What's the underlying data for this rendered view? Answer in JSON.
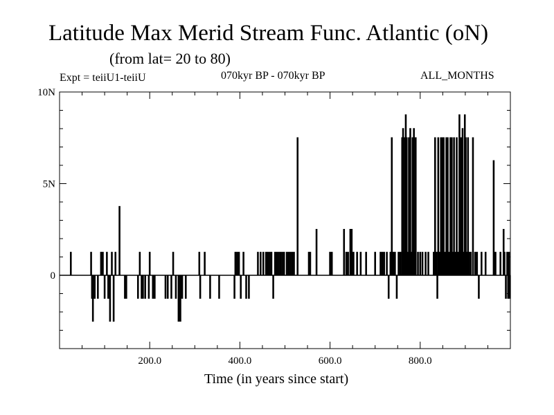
{
  "chart_data": {
    "type": "line",
    "title": "Latitude Max Merid Stream Func. Atlantic (oN)",
    "subtitle": "(from lat= 20 to 80)",
    "expt_label": "Expt = teiiU1-teiiU",
    "period_label": "070kyr BP - 070kyr BP",
    "months_label": "ALL_MONTHS",
    "xlabel": "Time (in years since start)",
    "ylabel": "",
    "xlim": [
      0,
      1000
    ],
    "ylim": [
      -4,
      10
    ],
    "x_ticks": [
      200,
      400,
      600,
      800
    ],
    "x_tick_labels": [
      "200.0",
      "400.0",
      "600.0",
      "800.0"
    ],
    "y_ticks": [
      0,
      5,
      10
    ],
    "y_tick_labels": [
      "0",
      "5N",
      "10N"
    ],
    "series": [
      {
        "color": "#000000",
        "spikes": [
          [
            25,
            1.25
          ],
          [
            70,
            1.25
          ],
          [
            72,
            -1.25
          ],
          [
            74,
            -2.5
          ],
          [
            78,
            -1.25
          ],
          [
            85,
            -1.25
          ],
          [
            92,
            1.25
          ],
          [
            96,
            1.25
          ],
          [
            100,
            -1.25
          ],
          [
            105,
            1.25
          ],
          [
            108,
            -1.25
          ],
          [
            112,
            -2.5
          ],
          [
            116,
            1.25
          ],
          [
            120,
            -2.5
          ],
          [
            124,
            1.25
          ],
          [
            133,
            3.75
          ],
          [
            145,
            -1.25
          ],
          [
            148,
            -1.25
          ],
          [
            174,
            -1.25
          ],
          [
            178,
            1.25
          ],
          [
            182,
            -1.25
          ],
          [
            185,
            -1.25
          ],
          [
            190,
            -1.25
          ],
          [
            198,
            -1.25
          ],
          [
            200,
            1.25
          ],
          [
            207,
            -1.25
          ],
          [
            211,
            -1.25
          ],
          [
            235,
            -1.25
          ],
          [
            240,
            -1.25
          ],
          [
            248,
            -1.25
          ],
          [
            252,
            1.25
          ],
          [
            258,
            -1.25
          ],
          [
            264,
            -2.5
          ],
          [
            268,
            -2.5
          ],
          [
            272,
            -1.25
          ],
          [
            280,
            -1.25
          ],
          [
            310,
            1.25
          ],
          [
            312,
            -1.25
          ],
          [
            322,
            1.25
          ],
          [
            334,
            -1.25
          ],
          [
            354,
            -1.25
          ],
          [
            388,
            -1.25
          ],
          [
            390,
            1.25
          ],
          [
            394,
            1.25
          ],
          [
            398,
            1.25
          ],
          [
            402,
            -1.25
          ],
          [
            408,
            1.25
          ],
          [
            414,
            -1.25
          ],
          [
            420,
            -1.25
          ],
          [
            440,
            1.25
          ],
          [
            446,
            1.25
          ],
          [
            452,
            1.25
          ],
          [
            458,
            1.25
          ],
          [
            462,
            1.25
          ],
          [
            466,
            1.25
          ],
          [
            470,
            1.25
          ],
          [
            474,
            -1.25
          ],
          [
            478,
            1.25
          ],
          [
            482,
            1.25
          ],
          [
            486,
            1.25
          ],
          [
            490,
            1.25
          ],
          [
            494,
            1.25
          ],
          [
            498,
            1.25
          ],
          [
            504,
            1.25
          ],
          [
            508,
            1.25
          ],
          [
            512,
            1.25
          ],
          [
            516,
            1.25
          ],
          [
            520,
            1.25
          ],
          [
            528,
            7.5
          ],
          [
            553,
            1.25
          ],
          [
            556,
            1.25
          ],
          [
            570,
            2.5
          ],
          [
            600,
            1.25
          ],
          [
            604,
            1.25
          ],
          [
            631,
            2.5
          ],
          [
            636,
            1.25
          ],
          [
            640,
            1.25
          ],
          [
            645,
            2.5
          ],
          [
            648,
            2.5
          ],
          [
            652,
            1.25
          ],
          [
            660,
            1.25
          ],
          [
            668,
            1.25
          ],
          [
            680,
            1.25
          ],
          [
            700,
            1.25
          ],
          [
            712,
            1.25
          ],
          [
            716,
            1.25
          ],
          [
            720,
            1.25
          ],
          [
            726,
            1.25
          ],
          [
            730,
            -1.25
          ],
          [
            734,
            1.25
          ],
          [
            737,
            7.5
          ],
          [
            740,
            1.25
          ],
          [
            744,
            1.25
          ],
          [
            748,
            -1.25
          ],
          [
            752,
            1.25
          ],
          [
            756,
            1.25
          ],
          [
            760,
            7.5
          ],
          [
            762,
            8.0
          ],
          [
            764,
            1.25
          ],
          [
            766,
            7.5
          ],
          [
            768,
            8.75
          ],
          [
            770,
            7.5
          ],
          [
            772,
            1.25
          ],
          [
            775,
            7.5
          ],
          [
            778,
            8.0
          ],
          [
            780,
            1.25
          ],
          [
            783,
            7.5
          ],
          [
            786,
            8.0
          ],
          [
            788,
            1.25
          ],
          [
            790,
            7.5
          ],
          [
            795,
            1.25
          ],
          [
            800,
            1.25
          ],
          [
            805,
            1.25
          ],
          [
            812,
            1.25
          ],
          [
            818,
            1.25
          ],
          [
            830,
            1.25
          ],
          [
            833,
            7.5
          ],
          [
            836,
            1.25
          ],
          [
            838,
            -1.25
          ],
          [
            840,
            7.5
          ],
          [
            843,
            1.25
          ],
          [
            846,
            7.5
          ],
          [
            849,
            7.5
          ],
          [
            852,
            7.5
          ],
          [
            855,
            1.25
          ],
          [
            858,
            7.5
          ],
          [
            861,
            7.5
          ],
          [
            864,
            1.25
          ],
          [
            867,
            7.5
          ],
          [
            870,
            7.5
          ],
          [
            872,
            1.25
          ],
          [
            875,
            7.5
          ],
          [
            878,
            1.25
          ],
          [
            881,
            7.5
          ],
          [
            884,
            1.25
          ],
          [
            887,
            8.75
          ],
          [
            889,
            1.25
          ],
          [
            891,
            7.5
          ],
          [
            894,
            8.0
          ],
          [
            896,
            1.25
          ],
          [
            899,
            8.75
          ],
          [
            901,
            7.5
          ],
          [
            904,
            1.25
          ],
          [
            906,
            7.5
          ],
          [
            908,
            1.25
          ],
          [
            912,
            1.25
          ],
          [
            917,
            7.5
          ],
          [
            922,
            1.25
          ],
          [
            926,
            1.25
          ],
          [
            930,
            -1.25
          ],
          [
            936,
            1.25
          ],
          [
            945,
            1.25
          ],
          [
            963,
            6.25
          ],
          [
            967,
            1.25
          ],
          [
            978,
            1.25
          ],
          [
            985,
            2.5
          ],
          [
            987,
            1.25
          ],
          [
            990,
            -1.25
          ],
          [
            993,
            1.25
          ],
          [
            995,
            -1.25
          ],
          [
            997,
            1.25
          ],
          [
            999,
            -1.25
          ]
        ]
      }
    ]
  }
}
